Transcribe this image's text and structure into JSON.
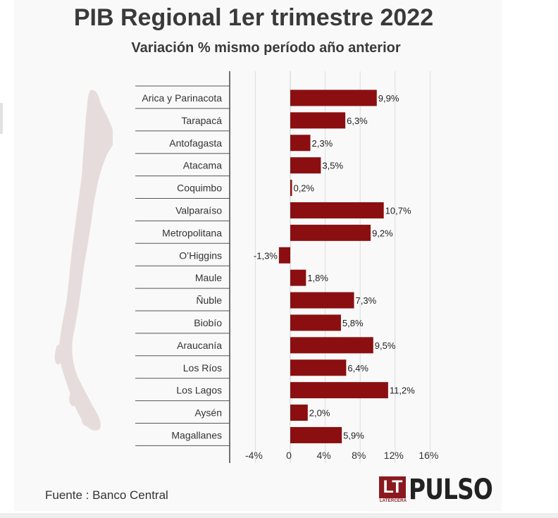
{
  "header": {
    "title": "PIB Regional 1er trimestre 2022",
    "subtitle": "Variación % mismo período año anterior"
  },
  "footer": {
    "source": "Fuente : Banco Central",
    "logo_lt": "LT",
    "logo_sub": "LATERCERA",
    "logo_name": "PULSO"
  },
  "colors": {
    "bar": "#8b0f10",
    "logo": "#8a1a1f",
    "map": "#e7dcdc"
  },
  "chart_data": {
    "type": "bar",
    "orientation": "horizontal",
    "categories": [
      "Arica y Parinacota",
      "Tarapacá",
      "Antofagasta",
      "Atacama",
      "Coquimbo",
      "Valparaíso",
      "Metropolitana",
      "O’Higgins",
      "Maule",
      "Ñuble",
      "Biobío",
      "Araucanía",
      "Los Ríos",
      "Los Lagos",
      "Aysén",
      "Magallanes"
    ],
    "values": [
      9.9,
      6.3,
      2.3,
      3.5,
      0.2,
      10.7,
      9.2,
      -1.3,
      1.8,
      7.3,
      5.8,
      9.5,
      6.4,
      11.2,
      2.0,
      5.9
    ],
    "value_labels": [
      "9,9%",
      "6,3%",
      "2,3%",
      "3,5%",
      "0,2%",
      "10,7%",
      "9,2%",
      "-1,3%",
      "1,8%",
      "7,3%",
      "5,8%",
      "9,5%",
      "6,4%",
      "11,2%",
      "2,0%",
      "5,9%"
    ],
    "xlim": [
      -6,
      17
    ],
    "x_ticks": [
      -4,
      0,
      4,
      8,
      12,
      16
    ],
    "x_tick_labels": [
      "-4%",
      "0",
      "4%",
      "8%",
      "12%",
      "16%"
    ],
    "grid": true,
    "legend": "none"
  }
}
